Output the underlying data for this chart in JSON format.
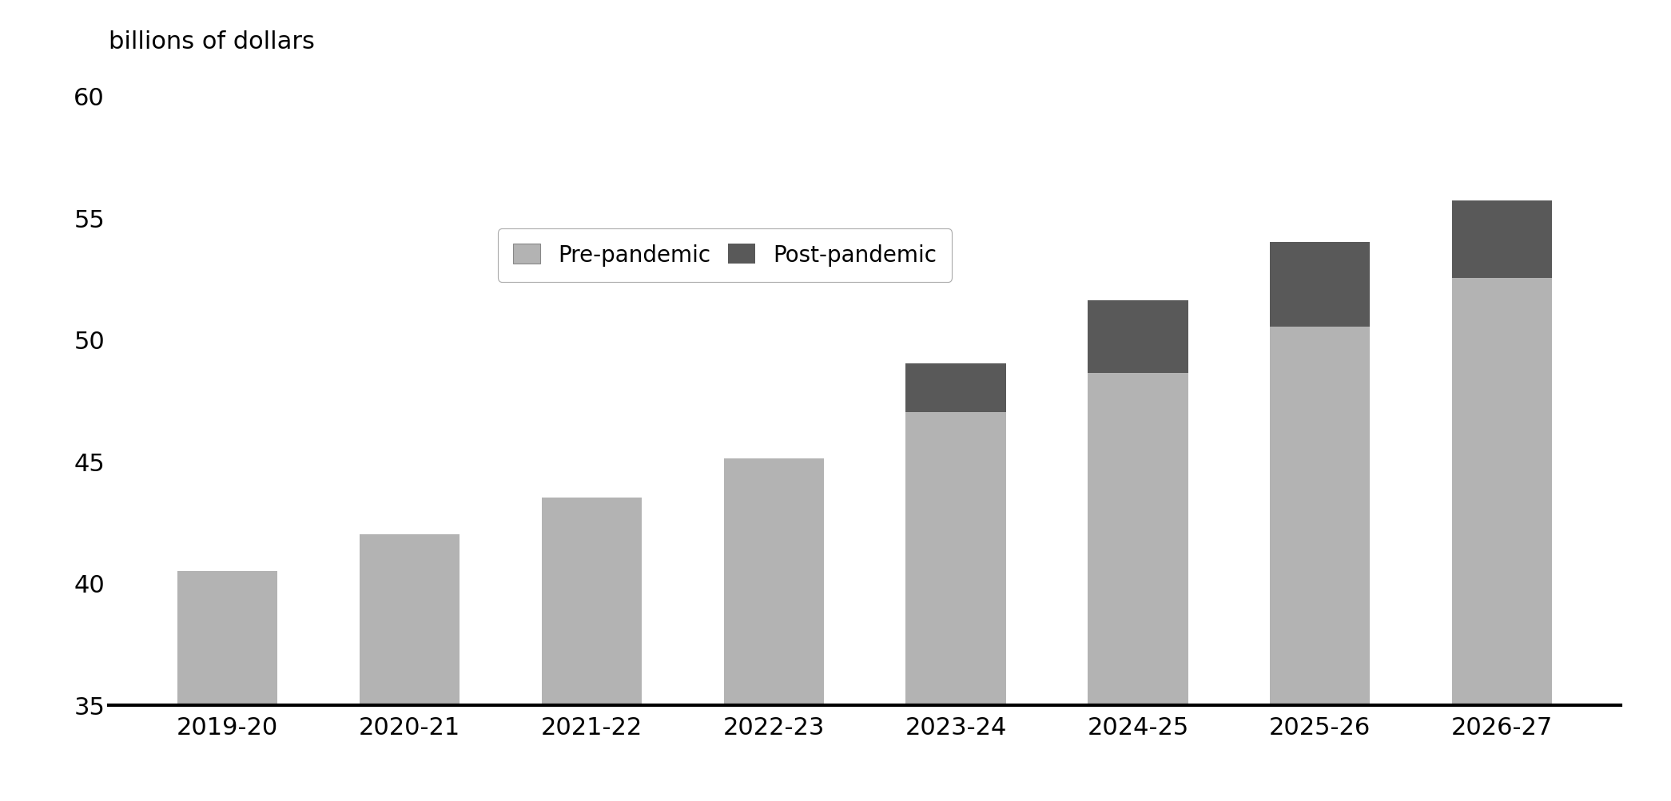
{
  "categories": [
    "2019-20",
    "2020-21",
    "2021-22",
    "2022-23",
    "2023-24",
    "2024-25",
    "2025-26",
    "2026-27"
  ],
  "pre_pandemic": [
    40.5,
    42.0,
    43.5,
    45.1,
    47.0,
    48.6,
    50.5,
    52.5
  ],
  "post_pandemic": [
    0.0,
    0.0,
    0.0,
    0.0,
    2.0,
    3.0,
    3.5,
    3.2
  ],
  "pre_color": "#b3b3b3",
  "post_color": "#595959",
  "ylim": [
    35,
    60
  ],
  "yticks": [
    35,
    40,
    45,
    50,
    55,
    60
  ],
  "ytick_labels": [
    "35",
    "40",
    "45",
    "50",
    "55",
    "60"
  ],
  "ylabel": "billions of dollars",
  "legend_pre": "Pre-pandemic",
  "legend_post": "Post-pandemic",
  "background_color": "#ffffff",
  "bar_width": 0.55
}
